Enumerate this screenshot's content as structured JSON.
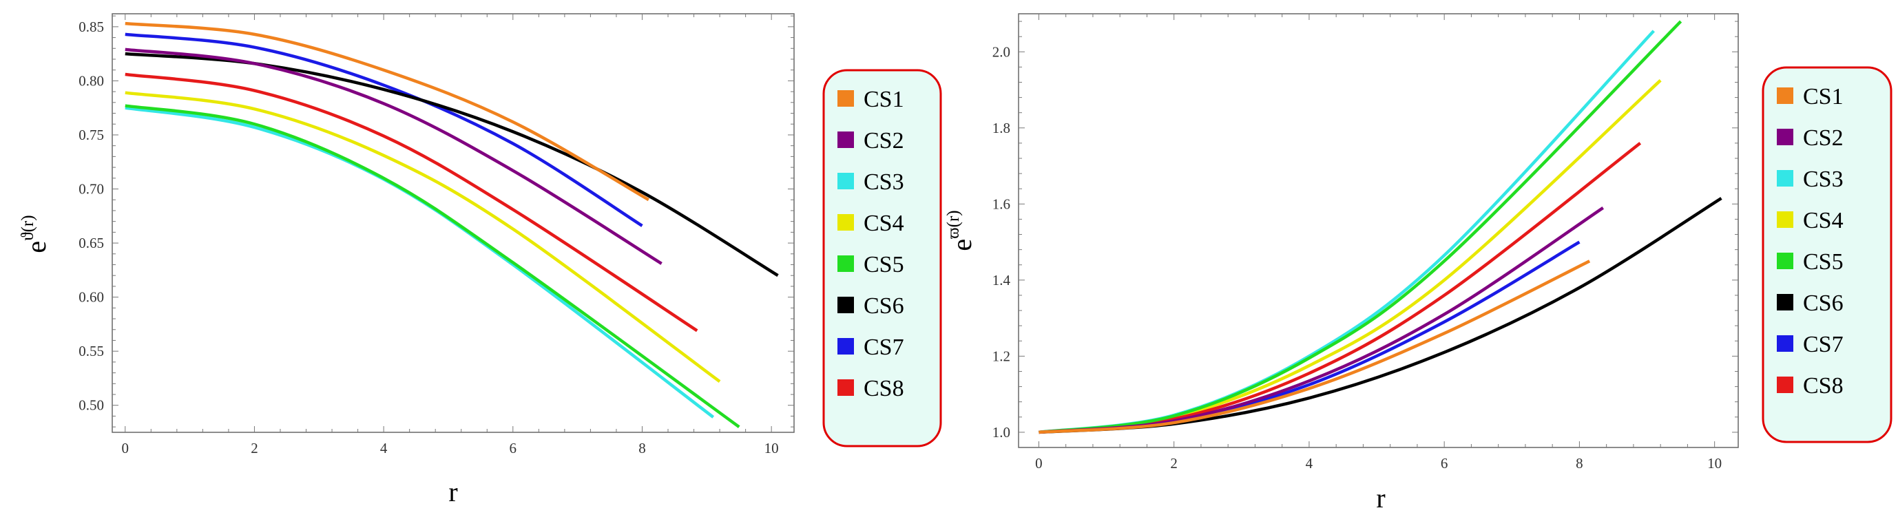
{
  "legend_box_color": "#e00000",
  "legend_bg": "#e6fbf5",
  "chart_data": [
    {
      "type": "line",
      "xlabel": "r",
      "ylabel_base": "e",
      "ylabel_sup": "ϑ(r)",
      "xlim": [
        -0.2,
        10.35
      ],
      "ylim": [
        0.475,
        0.862
      ],
      "xticks": [
        0,
        2,
        4,
        6,
        8,
        10
      ],
      "yticks": [
        0.5,
        0.55,
        0.6,
        0.65,
        0.7,
        0.75,
        0.8,
        0.85
      ],
      "grid": false,
      "legend": "right",
      "series": [
        {
          "name": "CS1",
          "color": "#f0821e",
          "x": [
            0,
            2,
            4,
            6,
            8.1
          ],
          "y": [
            0.853,
            0.843,
            0.81,
            0.762,
            0.69
          ]
        },
        {
          "name": "CS2",
          "color": "#800080",
          "x": [
            0,
            2,
            4,
            6,
            8.3
          ],
          "y": [
            0.829,
            0.816,
            0.779,
            0.717,
            0.631
          ]
        },
        {
          "name": "CS3",
          "color": "#33e6e6",
          "x": [
            0,
            2,
            4,
            6,
            9.1
          ],
          "y": [
            0.775,
            0.757,
            0.709,
            0.63,
            0.489
          ]
        },
        {
          "name": "CS4",
          "color": "#e8e800",
          "x": [
            0,
            2,
            4,
            6,
            9.2
          ],
          "y": [
            0.789,
            0.774,
            0.731,
            0.663,
            0.522
          ]
        },
        {
          "name": "CS5",
          "color": "#22dd22",
          "x": [
            0,
            2,
            4,
            6,
            9.5
          ],
          "y": [
            0.777,
            0.76,
            0.71,
            0.632,
            0.48
          ]
        },
        {
          "name": "CS6",
          "color": "#000000",
          "x": [
            0,
            2,
            4,
            6,
            8,
            10.1
          ],
          "y": [
            0.825,
            0.816,
            0.792,
            0.753,
            0.697,
            0.62
          ]
        },
        {
          "name": "CS7",
          "color": "#1a1ae6",
          "x": [
            0,
            2,
            4,
            6,
            8.0
          ],
          "y": [
            0.843,
            0.831,
            0.796,
            0.742,
            0.666
          ]
        },
        {
          "name": "CS8",
          "color": "#e61a1a",
          "x": [
            0,
            2,
            4,
            6,
            8.85
          ],
          "y": [
            0.806,
            0.791,
            0.749,
            0.681,
            0.569
          ]
        }
      ]
    },
    {
      "type": "line",
      "xlabel": "r",
      "ylabel_base": "e",
      "ylabel_sup": "ϖ(r)",
      "xlim": [
        -0.3,
        10.35
      ],
      "ylim": [
        0.96,
        2.1
      ],
      "xticks": [
        0,
        2,
        4,
        6,
        8,
        10
      ],
      "yticks": [
        1.0,
        1.2,
        1.4,
        1.6,
        1.8,
        2.0
      ],
      "grid": false,
      "legend": "right",
      "series": [
        {
          "name": "CS1",
          "color": "#f0821e",
          "x": [
            0,
            2,
            4,
            6,
            8.15
          ],
          "y": [
            1.0,
            1.025,
            1.115,
            1.26,
            1.45
          ]
        },
        {
          "name": "CS2",
          "color": "#800080",
          "x": [
            0,
            2,
            4,
            6,
            8.35
          ],
          "y": [
            1.0,
            1.03,
            1.135,
            1.31,
            1.59
          ]
        },
        {
          "name": "CS3",
          "color": "#33e6e6",
          "x": [
            0,
            2,
            4,
            6,
            9.1
          ],
          "y": [
            1.0,
            1.045,
            1.2,
            1.465,
            2.055
          ]
        },
        {
          "name": "CS4",
          "color": "#e8e800",
          "x": [
            0,
            2,
            4,
            6,
            9.2
          ],
          "y": [
            1.0,
            1.04,
            1.175,
            1.4,
            1.925
          ]
        },
        {
          "name": "CS5",
          "color": "#22dd22",
          "x": [
            0,
            2,
            4,
            6,
            9.5
          ],
          "y": [
            1.0,
            1.043,
            1.195,
            1.45,
            2.08
          ]
        },
        {
          "name": "CS6",
          "color": "#000000",
          "x": [
            0,
            2,
            4,
            6,
            8,
            10.1
          ],
          "y": [
            1.0,
            1.022,
            1.09,
            1.21,
            1.38,
            1.615
          ]
        },
        {
          "name": "CS7",
          "color": "#1a1ae6",
          "x": [
            0,
            2,
            4,
            6,
            8.0
          ],
          "y": [
            1.0,
            1.028,
            1.125,
            1.29,
            1.5
          ]
        },
        {
          "name": "CS8",
          "color": "#e61a1a",
          "x": [
            0,
            2,
            4,
            6,
            8.9
          ],
          "y": [
            1.0,
            1.035,
            1.155,
            1.36,
            1.76
          ]
        }
      ]
    }
  ]
}
